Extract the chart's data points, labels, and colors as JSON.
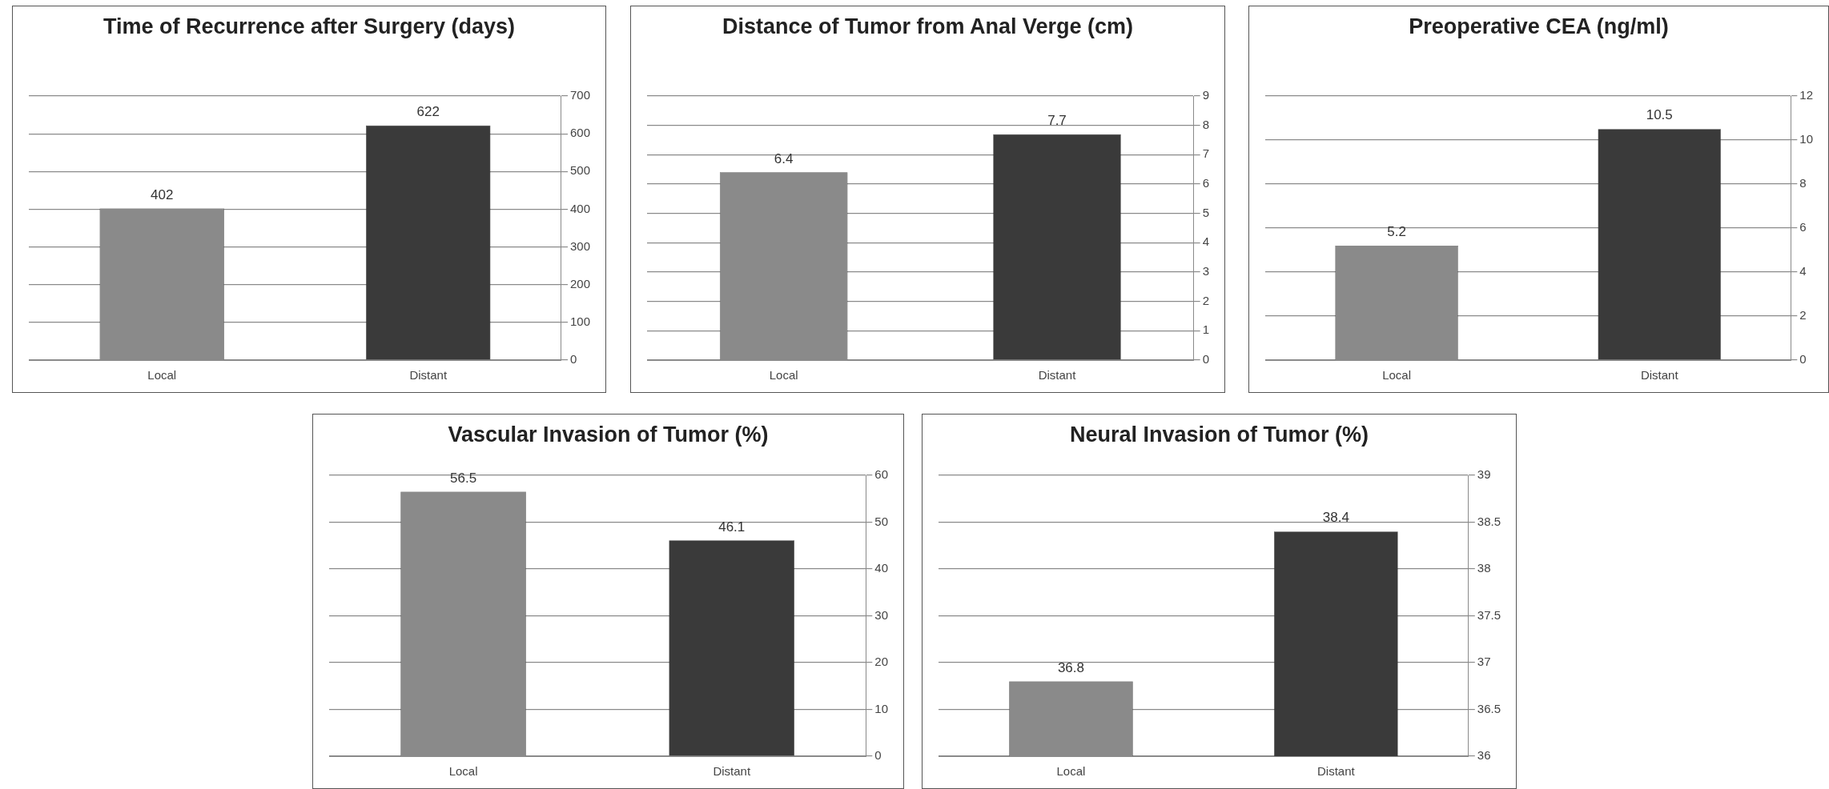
{
  "chart_data": [
    {
      "type": "bar",
      "title": "Time of Recurrence after Surgery (days)",
      "categories": [
        "Local",
        "Distant"
      ],
      "values": [
        402,
        622
      ],
      "colors": [
        "#8a8a8a",
        "#3a3a3a"
      ],
      "ylim": [
        0,
        700
      ],
      "yticks": [
        0,
        100,
        200,
        300,
        400,
        500,
        600,
        700
      ],
      "grid": "y",
      "legend": false,
      "data_labels": true
    },
    {
      "type": "bar",
      "title": "Distance of Tumor from Anal Verge (cm)",
      "categories": [
        "Local",
        "Distant"
      ],
      "values": [
        6.4,
        7.7
      ],
      "colors": [
        "#8a8a8a",
        "#3a3a3a"
      ],
      "ylim": [
        0,
        9
      ],
      "yticks": [
        0,
        1,
        2,
        3,
        4,
        5,
        6,
        7,
        8,
        9
      ],
      "grid": "y",
      "legend": false,
      "data_labels": true
    },
    {
      "type": "bar",
      "title": "Preoperative CEA (ng/ml)",
      "categories": [
        "Local",
        "Distant"
      ],
      "values": [
        5.2,
        10.5
      ],
      "colors": [
        "#8a8a8a",
        "#3a3a3a"
      ],
      "ylim": [
        0,
        12
      ],
      "yticks": [
        0,
        2,
        4,
        6,
        8,
        10,
        12
      ],
      "grid": "y",
      "legend": false,
      "data_labels": true
    },
    {
      "type": "bar",
      "title": "Vascular Invasion of Tumor (%)",
      "categories": [
        "Local",
        "Distant"
      ],
      "values": [
        56.5,
        46.1
      ],
      "colors": [
        "#8a8a8a",
        "#3a3a3a"
      ],
      "ylim": [
        0,
        60
      ],
      "yticks": [
        0,
        10,
        20,
        30,
        40,
        50,
        60
      ],
      "grid": "y",
      "legend": false,
      "data_labels": true
    },
    {
      "type": "bar",
      "title": "Neural Invasion of Tumor (%)",
      "categories": [
        "Local",
        "Distant"
      ],
      "values": [
        36.8,
        38.4
      ],
      "colors": [
        "#8a8a8a",
        "#3a3a3a"
      ],
      "ylim": [
        36,
        39
      ],
      "yticks": [
        36,
        36.5,
        37,
        37.5,
        38,
        38.5,
        39
      ],
      "grid": "y",
      "legend": false,
      "data_labels": true
    }
  ]
}
